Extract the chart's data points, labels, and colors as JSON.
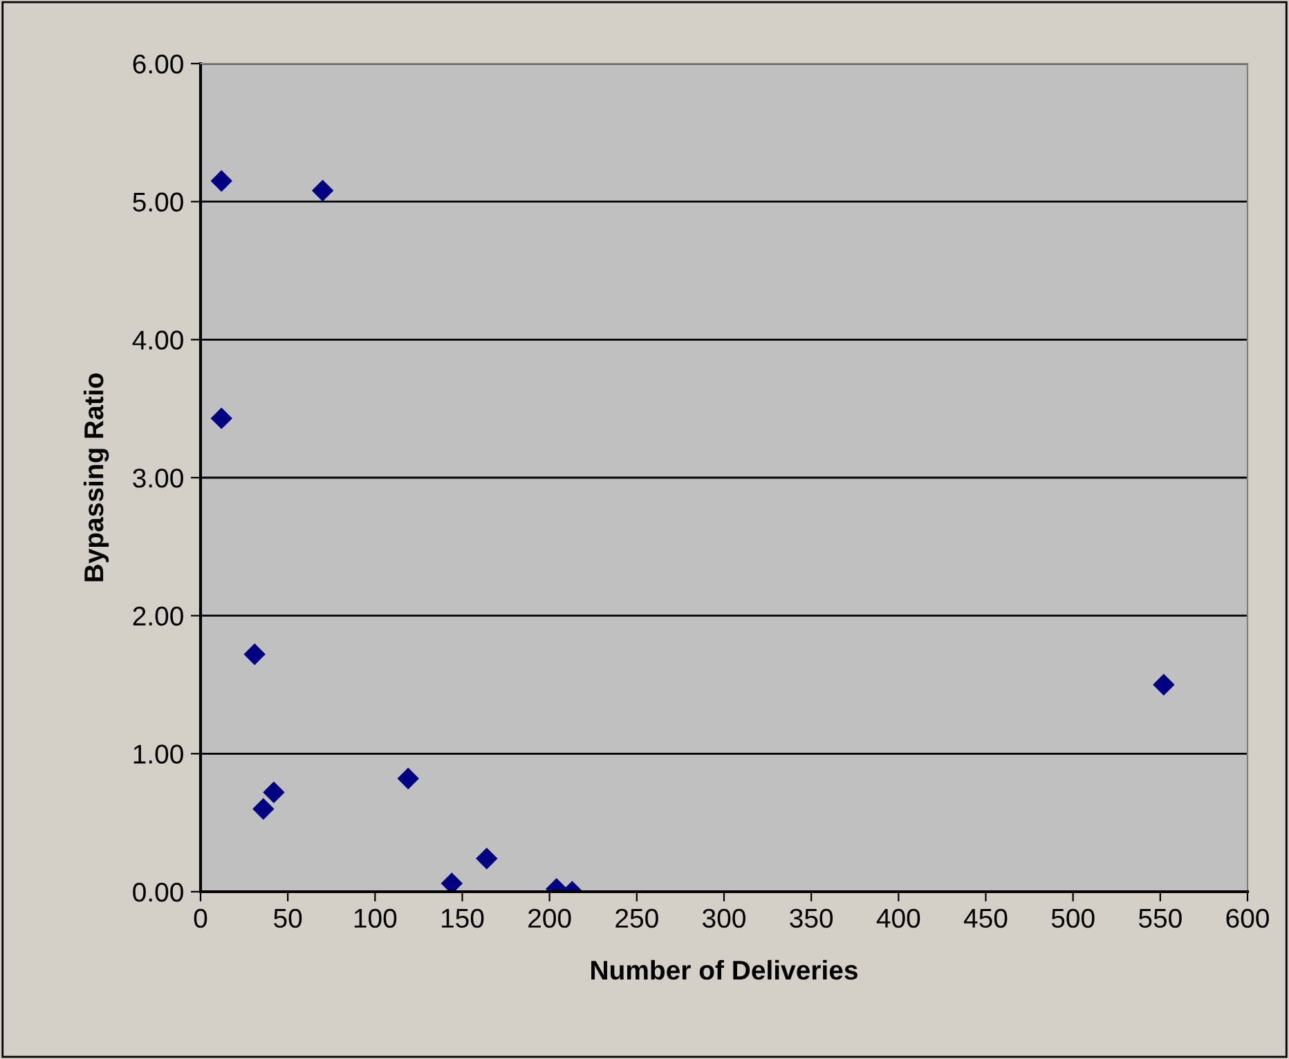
{
  "chart_data": {
    "type": "scatter",
    "xlabel": "Number of Deliveries",
    "ylabel": "Bypassing Ratio",
    "x": [
      12,
      70,
      12,
      31,
      36,
      42,
      119,
      144,
      164,
      204,
      213,
      552
    ],
    "series": [
      {
        "color": "#000080",
        "values": [
          5.15,
          5.08,
          3.43,
          1.72,
          0.6,
          0.72,
          0.82,
          0.06,
          0.24,
          0.02,
          0.0,
          1.5
        ]
      }
    ],
    "xlim": [
      0,
      600
    ],
    "xticks": [
      0,
      50,
      100,
      150,
      200,
      250,
      300,
      350,
      400,
      450,
      500,
      550,
      600
    ],
    "ylim": [
      0,
      6
    ],
    "yticks": [
      {
        "value": 0,
        "label": "0.00"
      },
      {
        "value": 1,
        "label": "1.00"
      },
      {
        "value": 2,
        "label": "2.00"
      },
      {
        "value": 3,
        "label": "3.00"
      },
      {
        "value": 4,
        "label": "4.00"
      },
      {
        "value": 5,
        "label": "5.00"
      },
      {
        "value": 6,
        "label": "6.00"
      }
    ],
    "grid": "y",
    "marker": "diamond"
  }
}
